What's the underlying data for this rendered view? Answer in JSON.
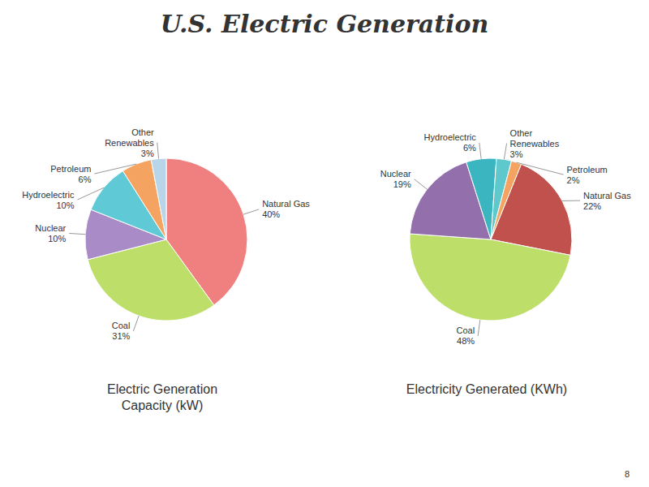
{
  "title": "U.S. Electric Generation",
  "annotations": [
    "8"
  ],
  "chart_data": [
    {
      "type": "pie",
      "title": "Electric Generation\nCapacity (kW)",
      "categories": [
        "Natural Gas",
        "Coal",
        "Nuclear",
        "Hydroelectric",
        "Petroleum",
        "Other\nRenewables"
      ],
      "values": [
        40,
        31,
        10,
        10,
        6,
        3
      ],
      "value_labels": [
        "40%",
        "31%",
        "10%",
        "10%",
        "6%",
        "3%"
      ],
      "colors": [
        "#F08080",
        "#BDDF6A",
        "#A98CC7",
        "#5FCAD5",
        "#F4A460",
        "#B8D5EA"
      ],
      "data_labels": true
    },
    {
      "type": "pie",
      "title": "Electricity Generated (KWh)",
      "categories": [
        "Natural Gas",
        "Coal",
        "Nuclear",
        "Hydroelectric",
        "Other\nRenewables",
        "Petroleum"
      ],
      "values": [
        22,
        48,
        19,
        6,
        3,
        2
      ],
      "value_labels": [
        "22%",
        "48%",
        "19%",
        "6%",
        "3%",
        "2%"
      ],
      "colors": [
        "#C0514C",
        "#BDDF6A",
        "#9370AB",
        "#3BB5C0",
        "#5FC8CC",
        "#F4A460"
      ],
      "data_labels": true
    }
  ]
}
